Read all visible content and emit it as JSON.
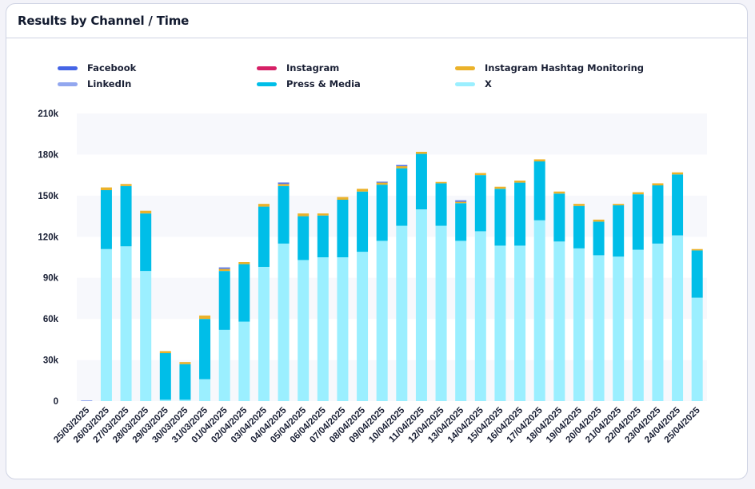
{
  "card": {
    "title": "Results by Channel / Time"
  },
  "chart_data": {
    "type": "bar",
    "stacked": true,
    "title": "Results by Channel / Time",
    "xlabel": "",
    "ylabel": "",
    "ylim": [
      0,
      210000
    ],
    "yticks": [
      0,
      30000,
      60000,
      90000,
      120000,
      150000,
      180000,
      210000
    ],
    "ytick_labels": [
      "0",
      "30k",
      "60k",
      "90k",
      "120k",
      "150k",
      "180k",
      "210k"
    ],
    "grid": "alternating horizontal bands",
    "legend_position": "top",
    "categories": [
      "25/03/2025",
      "26/03/2025",
      "27/03/2025",
      "28/03/2025",
      "29/03/2025",
      "30/03/2025",
      "31/03/2025",
      "01/04/2025",
      "02/04/2025",
      "03/04/2025",
      "04/04/2025",
      "05/04/2025",
      "06/04/2025",
      "07/04/2025",
      "08/04/2025",
      "09/04/2025",
      "10/04/2025",
      "11/04/2025",
      "12/04/2025",
      "13/04/2025",
      "14/04/2025",
      "15/04/2025",
      "16/04/2025",
      "17/04/2025",
      "18/04/2025",
      "19/04/2025",
      "20/04/2025",
      "21/04/2025",
      "22/04/2025",
      "23/04/2025",
      "24/04/2025",
      "25/04/2025"
    ],
    "series": [
      {
        "name": "X",
        "color": "#9befff",
        "values": [
          0,
          111000,
          113000,
          95000,
          1000,
          1000,
          16000,
          52000,
          58000,
          98000,
          115000,
          103000,
          105000,
          105000,
          109000,
          117000,
          128000,
          140000,
          128000,
          117000,
          124000,
          113500,
          113500,
          132000,
          116500,
          111500,
          106500,
          105500,
          110500,
          115000,
          121000,
          75500
        ]
      },
      {
        "name": "Press & Media",
        "color": "#00bee8",
        "values": [
          0,
          43000,
          44000,
          42000,
          34000,
          26000,
          44000,
          43000,
          42000,
          44000,
          42000,
          32000,
          30500,
          42000,
          44000,
          41000,
          42000,
          40500,
          31000,
          27500,
          41000,
          41500,
          46000,
          43000,
          35000,
          31000,
          24500,
          37500,
          40500,
          42500,
          44500,
          34500
        ]
      },
      {
        "name": "Instagram Hashtag Monitoring",
        "color": "#ebb22a",
        "values": [
          0,
          2000,
          1500,
          2000,
          1500,
          1500,
          2500,
          1500,
          1500,
          2000,
          1500,
          2000,
          1500,
          2000,
          2000,
          1500,
          1500,
          1500,
          1000,
          1000,
          1500,
          1500,
          1500,
          1500,
          1500,
          1500,
          1500,
          1000,
          1500,
          1500,
          1500,
          1000
        ]
      },
      {
        "name": "Instagram",
        "color": "#d62066",
        "values": [
          0,
          0,
          0,
          0,
          0,
          0,
          0,
          0,
          0,
          0,
          0,
          0,
          0,
          0,
          0,
          0,
          0,
          0,
          0,
          0,
          0,
          0,
          0,
          0,
          0,
          0,
          0,
          0,
          0,
          0,
          0,
          0
        ]
      },
      {
        "name": "Facebook",
        "color": "#4565e6",
        "values": [
          0,
          0,
          0,
          0,
          0,
          0,
          0,
          700,
          0,
          0,
          700,
          0,
          0,
          0,
          0,
          300,
          500,
          0,
          0,
          700,
          0,
          0,
          0,
          0,
          0,
          0,
          0,
          0,
          0,
          0,
          0,
          0
        ]
      },
      {
        "name": "LinkedIn",
        "color": "#92a7ef",
        "values": [
          500,
          0,
          0,
          0,
          0,
          0,
          0,
          500,
          0,
          0,
          300,
          0,
          0,
          0,
          0,
          500,
          500,
          0,
          0,
          500,
          0,
          0,
          0,
          0,
          0,
          0,
          0,
          0,
          0,
          0,
          0,
          0
        ]
      }
    ]
  },
  "legend": [
    {
      "label": "Facebook",
      "color": "#4565e6"
    },
    {
      "label": "Instagram",
      "color": "#d62066"
    },
    {
      "label": "Instagram Hashtag Monitoring",
      "color": "#ebb22a"
    },
    {
      "label": "LinkedIn",
      "color": "#92a7ef"
    },
    {
      "label": "Press & Media",
      "color": "#00bee8"
    },
    {
      "label": "X",
      "color": "#9befff"
    }
  ]
}
